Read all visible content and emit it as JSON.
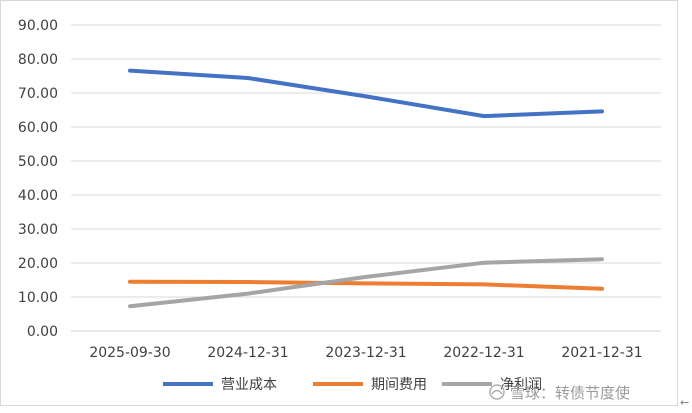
{
  "chart_data": {
    "type": "line",
    "title": "",
    "xlabel": "",
    "ylabel": "",
    "categories": [
      "2025-09-30",
      "2024-12-31",
      "2023-12-31",
      "2022-12-31",
      "2021-12-31"
    ],
    "ylim": [
      0,
      90
    ],
    "yticks": [
      "0.00",
      "10.00",
      "20.00",
      "30.00",
      "40.00",
      "50.00",
      "60.00",
      "70.00",
      "80.00",
      "90.00"
    ],
    "grid": true,
    "legend_position": "bottom",
    "series": [
      {
        "name": "营业成本",
        "color": "#4472c4",
        "values": [
          76.6,
          74.4,
          69.0,
          63.2,
          64.6
        ]
      },
      {
        "name": "期间费用",
        "color": "#ed7d31",
        "values": [
          14.5,
          14.4,
          14.0,
          13.7,
          12.4
        ]
      },
      {
        "name": "净利润",
        "color": "#a5a5a5",
        "values": [
          7.3,
          11.0,
          15.9,
          20.1,
          21.1
        ]
      }
    ]
  },
  "watermark": {
    "text": "雪球：转债节度使",
    "icon": "snowball-logo-icon"
  },
  "edge_mark": "←"
}
